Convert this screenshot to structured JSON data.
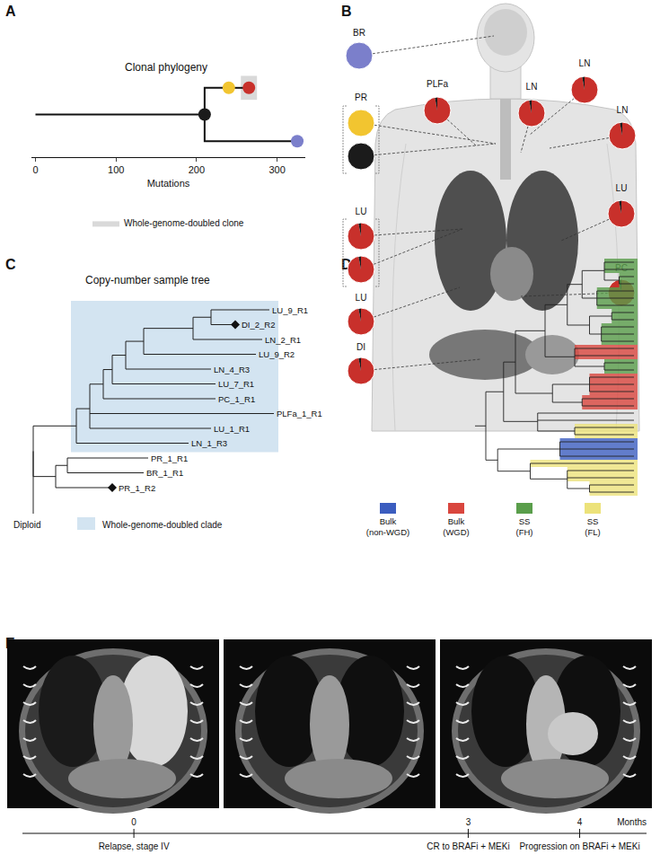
{
  "panel_labels": [
    "A",
    "B",
    "C",
    "D",
    "E"
  ],
  "chart_data": {
    "type": "tree",
    "title": "Clonal phylogeny",
    "x_label": "Mutations",
    "xlim": [
      -5,
      335
    ],
    "xticks": [
      0,
      100,
      200,
      300
    ],
    "grid": false,
    "legend": "bottom",
    "wgd_label": "Whole-genome-doubled clone",
    "wgd_color": "#d9d9d9",
    "tree": {
      "mutations": 0,
      "children": [
        {
          "mutations": 210,
          "color": "#1b1b1b",
          "children": [
            {
              "mutations": 240,
              "color": "#f2c530",
              "children": [
                {
                  "mutations": 265,
                  "color": "#c8302b",
                  "wgd": true
                }
              ]
            },
            {
              "mutations": 325,
              "color": "#7b7fcb"
            }
          ]
        }
      ]
    }
  },
  "body_map": {
    "sites": [
      {
        "label": "BR",
        "pies": [
          [
            {
              "color": "#7b7fcb",
              "value": 100
            }
          ]
        ]
      },
      {
        "label": "PR",
        "pies": [
          [
            {
              "color": "#f2c530",
              "value": 100
            }
          ],
          [
            {
              "color": "#1b1b1b",
              "value": 100
            }
          ]
        ]
      },
      {
        "label": "PLFa",
        "pies": [
          [
            {
              "color": "#c8302b",
              "value": 97
            },
            {
              "color": "#1b1b1b",
              "value": 3
            }
          ]
        ]
      },
      {
        "label": "LN",
        "pies": [
          [
            {
              "color": "#c8302b",
              "value": 97
            },
            {
              "color": "#1b1b1b",
              "value": 3
            }
          ]
        ]
      },
      {
        "label": "LN",
        "pies": [
          [
            {
              "color": "#c8302b",
              "value": 97
            },
            {
              "color": "#1b1b1b",
              "value": 3
            }
          ]
        ]
      },
      {
        "label": "LN",
        "pies": [
          [
            {
              "color": "#c8302b",
              "value": 97
            },
            {
              "color": "#1b1b1b",
              "value": 3
            }
          ]
        ]
      },
      {
        "label": "LU",
        "pies": [
          [
            {
              "color": "#c8302b",
              "value": 97
            },
            {
              "color": "#1b1b1b",
              "value": 3
            }
          ],
          [
            {
              "color": "#c8302b",
              "value": 97
            },
            {
              "color": "#1b1b1b",
              "value": 3
            }
          ]
        ]
      },
      {
        "label": "LU",
        "pies": [
          [
            {
              "color": "#c8302b",
              "value": 97
            },
            {
              "color": "#1b1b1b",
              "value": 3
            }
          ]
        ]
      },
      {
        "label": "LU",
        "pies": [
          [
            {
              "color": "#c8302b",
              "value": 97
            },
            {
              "color": "#1b1b1b",
              "value": 3
            }
          ]
        ]
      },
      {
        "label": "DI",
        "pies": [
          [
            {
              "color": "#c8302b",
              "value": 97
            },
            {
              "color": "#1b1b1b",
              "value": 3
            }
          ]
        ]
      },
      {
        "label": "PC",
        "pies": [
          [
            {
              "color": "#c8302b",
              "value": 97
            },
            {
              "color": "#1b1b1b",
              "value": 3
            }
          ]
        ]
      }
    ]
  },
  "copy_number_tree": {
    "title": "Copy-number sample tree",
    "wgd_label": "Whole-genome-doubled clade",
    "wgd_color": "#d3e4f1",
    "tree": {
      "label": "Diploid",
      "length": 0,
      "children": [
        {
          "length": 48,
          "wgd": true,
          "children": [
            {
              "length": 15,
              "children": [
                {
                  "length": 15,
                  "children": [
                    {
                      "length": 10,
                      "children": [
                        {
                          "length": 15,
                          "children": [
                            {
                              "length": 20,
                              "children": [
                                {
                                  "length": 55,
                                  "children": [
                                    {
                                      "length": 20,
                                      "children": [
                                        {
                                          "label": "LU_9_R1",
                                          "length": 65
                                        },
                                        {
                                          "label": "DI_2_R2",
                                          "length": 27,
                                          "marker": "diamond"
                                        }
                                      ]
                                    },
                                    {
                                      "label": "LN_2_R1",
                                      "length": 77
                                    }
                                  ]
                                },
                                {
                                  "label": "LU_9_R2",
                                  "length": 125
                                }
                              ]
                            },
                            {
                              "label": "LN_4_R3",
                              "length": 95
                            }
                          ]
                        },
                        {
                          "label": "LU_7_R1",
                          "length": 115
                        }
                      ]
                    },
                    {
                      "label": "PC_1_R1",
                      "length": 125
                    }
                  ]
                },
                {
                  "label": "PLFa_1_R1",
                  "length": 205
                },
                {
                  "label": "LU_1_R1",
                  "length": 135
                }
              ]
            },
            {
              "label": "LN_1_R3",
              "length": 125
            }
          ]
        },
        {
          "length": 25,
          "children": [
            {
              "length": 13,
              "children": [
                {
                  "label": "PR_1_R1",
                  "length": 90
                },
                {
                  "label": "BR_1_R1",
                  "length": 85
                }
              ]
            },
            {
              "label": "PR_1_R2",
              "length": 63,
              "marker": "diamond"
            }
          ]
        }
      ]
    }
  },
  "single_cell_dendrogram": {
    "groups": [
      {
        "label": "Bulk (non-WGD)",
        "color": "#3b5dbf"
      },
      {
        "label": "Bulk (WGD)",
        "color": "#d9463e"
      },
      {
        "label": "SS (FH)",
        "color": "#5a9e4b"
      },
      {
        "label": "SS (FL)",
        "color": "#ece27a"
      }
    ],
    "tree": {
      "h": 100,
      "c": [
        {
          "h": 88,
          "c": [
            {
              "h": 80,
              "c": [
                {
                  "h": 60,
                  "c": [
                    {
                      "h": 45,
                      "c": [
                        {
                          "h": 35,
                          "c": [
                            {
                              "h": 20,
                              "c": [
                                "SS (FH)",
                                "SS (FH)",
                                {
                                  "h": 10,
                                  "c": [
                                    "SS (FH)",
                                    "SS (FH)"
                                  ]
                                }
                              ]
                            },
                            {
                              "h": 25,
                              "c": [
                                "SS (FH)",
                                "SS (FH)",
                                "SS (FH)"
                              ]
                            }
                          ]
                        },
                        {
                          "h": 30,
                          "c": [
                            {
                              "h": 15,
                              "c": [
                                "SS (FH)",
                                "SS (FH)"
                              ]
                            },
                            {
                              "h": 22,
                              "c": [
                                "SS (FH)",
                                "SS (FH)",
                                "SS (FH)"
                              ]
                            }
                          ]
                        }
                      ]
                    },
                    {
                      "h": 40,
                      "c": [
                        "Bulk (WGD)",
                        "Bulk (WGD)",
                        {
                          "h": 20,
                          "c": [
                            "SS (FH)",
                            "SS (FH)"
                          ]
                        }
                      ]
                    }
                  ]
                },
                {
                  "h": 55,
                  "c": [
                    {
                      "h": 30,
                      "c": [
                        "Bulk (WGD)",
                        "Bulk (WGD)",
                        "Bulk (WGD)"
                      ]
                    },
                    {
                      "h": 35,
                      "c": [
                        "Bulk (WGD)",
                        "Bulk (WGD)"
                      ]
                    }
                  ]
                }
              ]
            },
            {
              "h": 65,
              "c": [
                null,
                null,
                {
                  "h": 40,
                  "c": [
                    "SS (FL)",
                    "SS (FL)"
                  ]
                }
              ]
            }
          ]
        },
        {
          "h": 92,
          "c": [
            {
              "h": 50,
              "c": [
                "Bulk (non-WGD)",
                "Bulk (non-WGD)",
                "Bulk (non-WGD)"
              ]
            },
            {
              "h": 70,
              "c": [
                "SS (FL)",
                {
                  "h": 45,
                  "c": [
                    "SS (FL)",
                    "SS (FL)",
                    {
                      "h": 30,
                      "c": [
                        "SS (FL)",
                        "SS (FL)"
                      ]
                    }
                  ]
                }
              ]
            }
          ]
        }
      ]
    }
  },
  "timeline": {
    "x_label": "Months",
    "xlim": [
      -1,
      4.6
    ],
    "events": [
      {
        "month": 0,
        "label": "Relapse, stage IV"
      },
      {
        "month": 3,
        "label": "CR to BRAFi + MEKi"
      },
      {
        "month": 4,
        "label": "Progression on BRAFi + MEKi"
      }
    ]
  }
}
